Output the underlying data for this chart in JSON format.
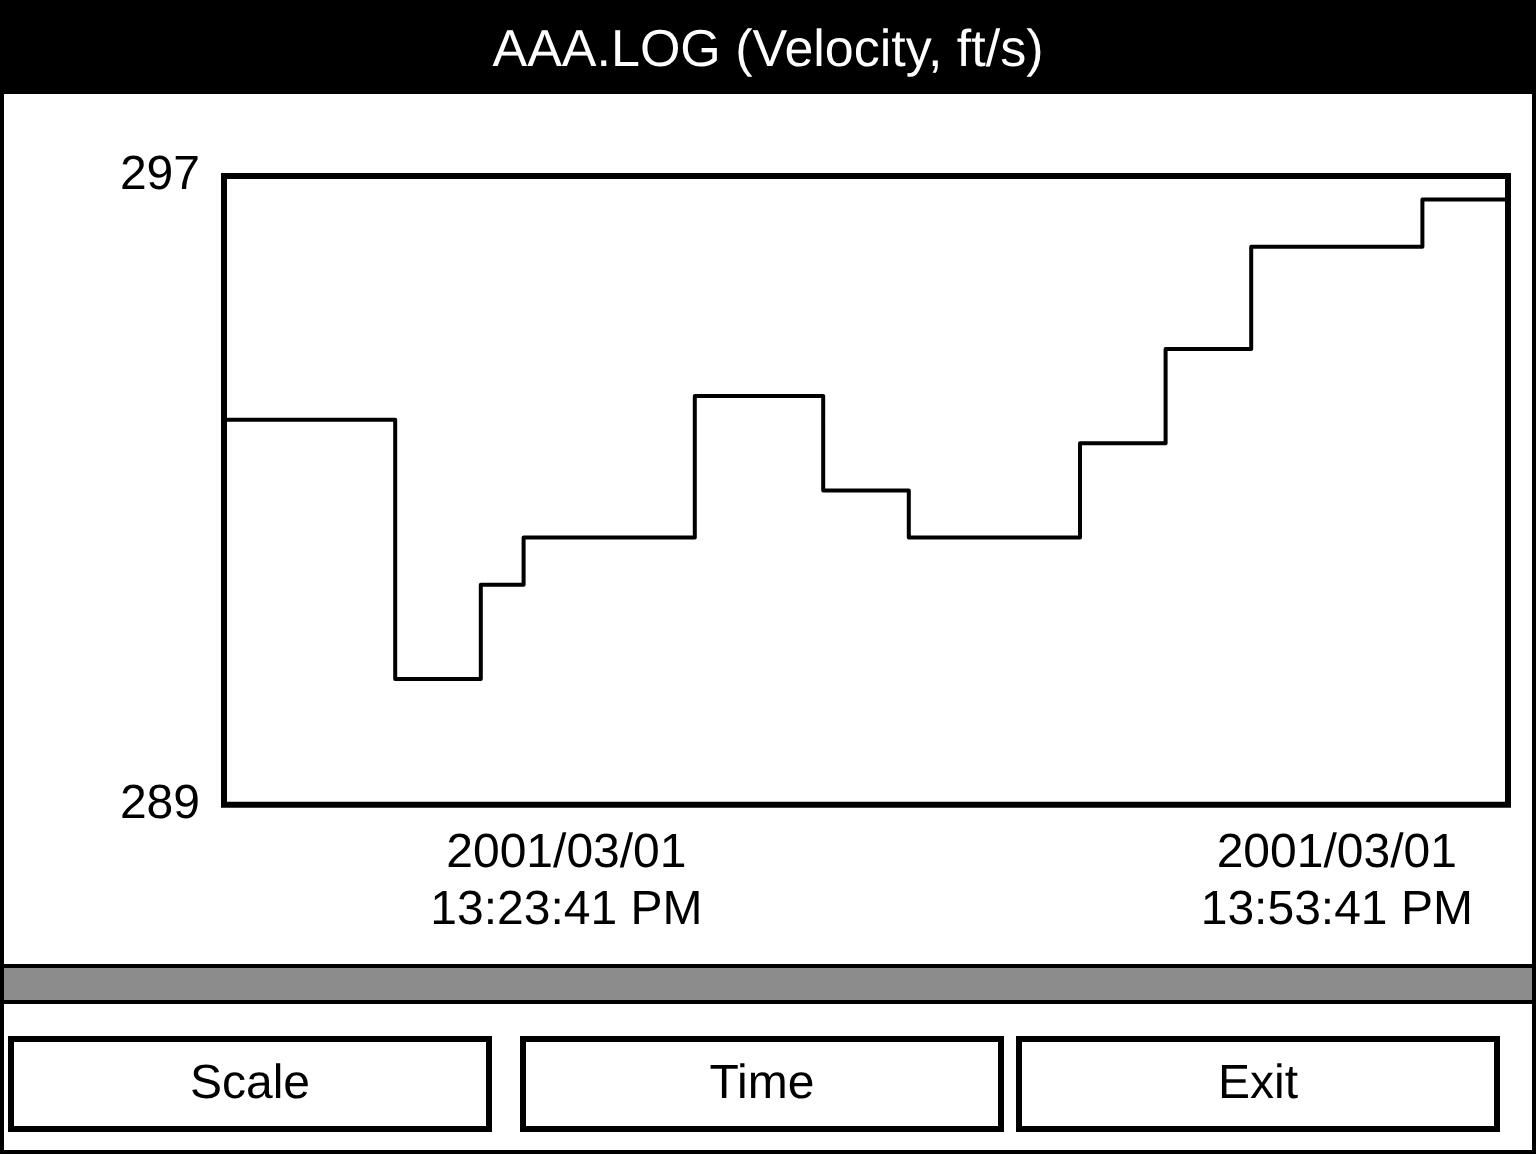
{
  "chart_data": {
    "type": "step",
    "title": "AAA.LOG (Velocity, ft/s)",
    "categories": [
      null,
      null,
      null,
      null,
      null,
      null,
      null,
      null,
      "2001/03/01\n13:23:41 PM",
      null,
      null,
      null,
      null,
      null,
      null,
      null,
      null,
      null,
      null,
      null,
      null,
      null,
      null,
      null,
      null,
      null,
      "2001/03/01\n13:53:41 PM",
      null,
      null,
      null,
      null
    ],
    "series": [
      {
        "color": "#000000",
        "values": [
          293.9,
          293.9,
          293.9,
          293.9,
          290.6,
          290.6,
          291.8,
          292.4,
          292.4,
          292.4,
          292.4,
          294.2,
          294.2,
          294.2,
          293.0,
          293.0,
          292.4,
          292.4,
          292.4,
          292.4,
          293.6,
          293.6,
          294.8,
          294.8,
          296.1,
          296.1,
          296.1,
          296.1,
          296.7,
          296.7,
          296.7
        ]
      }
    ],
    "ylim": [
      289,
      297
    ],
    "yticks": [
      289,
      297
    ],
    "legend": false,
    "marker": "none",
    "line_style": "solid",
    "annotations": [
      "Scale",
      "Time",
      "Exit"
    ]
  }
}
